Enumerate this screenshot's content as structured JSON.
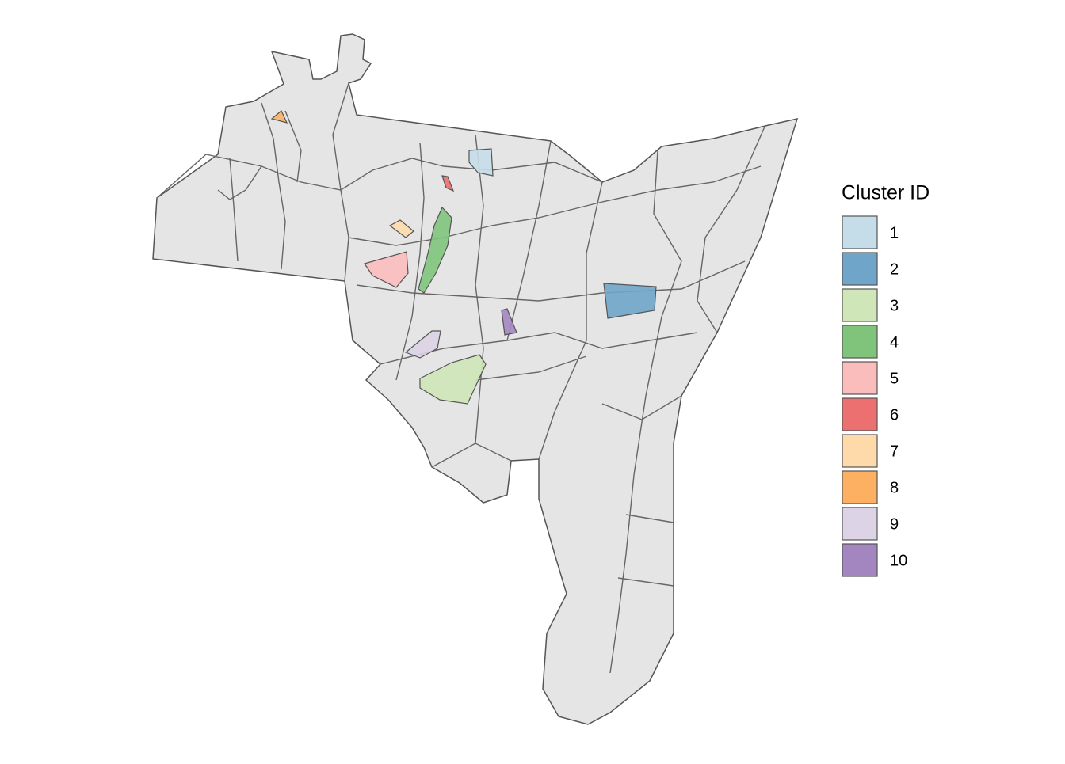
{
  "legend": {
    "title": "Cluster ID",
    "items": [
      {
        "label": "1",
        "color": "#c5dde9"
      },
      {
        "label": "2",
        "color": "#6fa5c9"
      },
      {
        "label": "3",
        "color": "#cfe6b8"
      },
      {
        "label": "4",
        "color": "#80c47c"
      },
      {
        "label": "5",
        "color": "#fbbcbc"
      },
      {
        "label": "6",
        "color": "#ec7070"
      },
      {
        "label": "7",
        "color": "#fedaab"
      },
      {
        "label": "8",
        "color": "#fdb062"
      },
      {
        "label": "9",
        "color": "#dcd3e6"
      },
      {
        "label": "10",
        "color": "#a386c0"
      }
    ]
  }
}
